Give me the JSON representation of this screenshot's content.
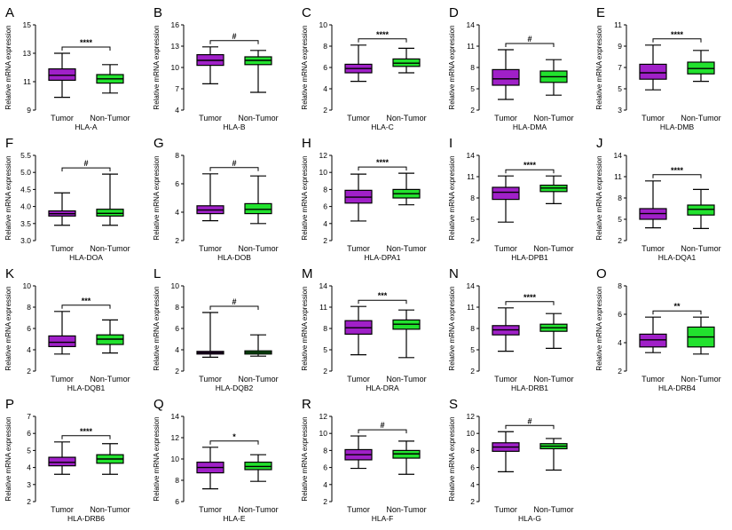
{
  "figure": {
    "ylabel": "Relative mRNA expression",
    "categories": [
      "Tumor",
      "Non-Tumor"
    ],
    "colors": {
      "tumor": "#A020C8",
      "normal": "#22E22E",
      "line": "#000000"
    }
  },
  "chart_data": [
    {
      "type": "box",
      "letter": "A",
      "gene": "HLA-A",
      "ylabel": "Relative mRNA expression",
      "categories": [
        "Tumor",
        "Non-Tumor"
      ],
      "ylim": [
        9,
        15
      ],
      "yticks": [
        "9",
        "11",
        "13",
        "15"
      ],
      "sig": "****",
      "series": [
        {
          "name": "Tumor",
          "min": 9.9,
          "q1": 11.1,
          "median": 11.45,
          "q3": 11.9,
          "max": 13.0
        },
        {
          "name": "Non-Tumor",
          "min": 10.2,
          "q1": 10.9,
          "median": 11.2,
          "q3": 11.5,
          "max": 12.2
        }
      ]
    },
    {
      "type": "box",
      "letter": "B",
      "gene": "HLA-B",
      "ylabel": "Relative mRNA expression",
      "categories": [
        "Tumor",
        "Non-Tumor"
      ],
      "ylim": [
        4,
        16
      ],
      "yticks": [
        "4",
        "7",
        "10",
        "13",
        "16"
      ],
      "sig": "#",
      "series": [
        {
          "name": "Tumor",
          "min": 7.7,
          "q1": 10.3,
          "median": 11.0,
          "q3": 11.8,
          "max": 12.9
        },
        {
          "name": "Non-Tumor",
          "min": 6.5,
          "q1": 10.4,
          "median": 11.0,
          "q3": 11.5,
          "max": 12.4
        }
      ]
    },
    {
      "type": "box",
      "letter": "C",
      "gene": "HLA-C",
      "ylabel": "Relative mRNA expression",
      "categories": [
        "Tumor",
        "Non-Tumor"
      ],
      "ylim": [
        2,
        10
      ],
      "yticks": [
        "2",
        "4",
        "6",
        "8",
        "10"
      ],
      "sig": "****",
      "series": [
        {
          "name": "Tumor",
          "min": 4.7,
          "q1": 5.5,
          "median": 5.9,
          "q3": 6.3,
          "max": 8.1
        },
        {
          "name": "Non-Tumor",
          "min": 5.5,
          "q1": 6.1,
          "median": 6.4,
          "q3": 6.8,
          "max": 7.8
        }
      ]
    },
    {
      "type": "box",
      "letter": "D",
      "gene": "HLA-DMA",
      "ylabel": "Relative mRNA expression",
      "categories": [
        "Tumor",
        "Non-Tumor"
      ],
      "ylim": [
        2,
        14
      ],
      "yticks": [
        "2",
        "5",
        "8",
        "11",
        "14"
      ],
      "sig": "#",
      "series": [
        {
          "name": "Tumor",
          "min": 3.5,
          "q1": 5.5,
          "median": 6.4,
          "q3": 7.7,
          "max": 10.5
        },
        {
          "name": "Non-Tumor",
          "min": 4.1,
          "q1": 5.9,
          "median": 6.7,
          "q3": 7.5,
          "max": 9.1
        }
      ]
    },
    {
      "type": "box",
      "letter": "E",
      "gene": "HLA-DMB",
      "ylabel": "Relative mRNA expression",
      "categories": [
        "Tumor",
        "Non-Tumor"
      ],
      "ylim": [
        3,
        11
      ],
      "yticks": [
        "3",
        "5",
        "7",
        "9",
        "11"
      ],
      "sig": "****",
      "series": [
        {
          "name": "Tumor",
          "min": 4.9,
          "q1": 5.9,
          "median": 6.5,
          "q3": 7.3,
          "max": 9.1
        },
        {
          "name": "Non-Tumor",
          "min": 5.7,
          "q1": 6.4,
          "median": 6.9,
          "q3": 7.5,
          "max": 8.6
        }
      ]
    },
    {
      "type": "box",
      "letter": "F",
      "gene": "HLA-DOA",
      "ylabel": "Relative mRNA expression",
      "categories": [
        "Tumor",
        "Non-Tumor"
      ],
      "ylim": [
        3.0,
        5.5
      ],
      "yticks": [
        "3.0",
        "3.5",
        "4.0",
        "4.5",
        "5.0",
        "5.5"
      ],
      "sig": "#",
      "series": [
        {
          "name": "Tumor",
          "min": 3.45,
          "q1": 3.72,
          "median": 3.79,
          "q3": 3.87,
          "max": 4.4
        },
        {
          "name": "Non-Tumor",
          "min": 3.45,
          "q1": 3.72,
          "median": 3.8,
          "q3": 3.92,
          "max": 4.95
        }
      ]
    },
    {
      "type": "box",
      "letter": "G",
      "gene": "HLA-DOB",
      "ylabel": "Relative mRNA expression",
      "categories": [
        "Tumor",
        "Non-Tumor"
      ],
      "ylim": [
        2,
        8
      ],
      "yticks": [
        "2",
        "4",
        "6",
        "8"
      ],
      "sig": "#",
      "series": [
        {
          "name": "Tumor",
          "min": 3.4,
          "q1": 3.9,
          "median": 4.15,
          "q3": 4.45,
          "max": 6.7
        },
        {
          "name": "Non-Tumor",
          "min": 3.2,
          "q1": 3.9,
          "median": 4.2,
          "q3": 4.6,
          "max": 6.55
        }
      ]
    },
    {
      "type": "box",
      "letter": "H",
      "gene": "HLA-DPA1",
      "ylabel": "Relative mRNA expression",
      "categories": [
        "Tumor",
        "Non-Tumor"
      ],
      "ylim": [
        2,
        12
      ],
      "yticks": [
        "2",
        "4",
        "6",
        "8",
        "10",
        "12"
      ],
      "sig": "****",
      "series": [
        {
          "name": "Tumor",
          "min": 4.3,
          "q1": 6.4,
          "median": 7.1,
          "q3": 7.9,
          "max": 9.8
        },
        {
          "name": "Non-Tumor",
          "min": 6.2,
          "q1": 7.0,
          "median": 7.5,
          "q3": 8.0,
          "max": 9.9
        }
      ]
    },
    {
      "type": "box",
      "letter": "I",
      "gene": "HLA-DPB1",
      "ylabel": "Relative mRNA expression",
      "categories": [
        "Tumor",
        "Non-Tumor"
      ],
      "ylim": [
        2,
        14
      ],
      "yticks": [
        "2",
        "5",
        "8",
        "11",
        "14"
      ],
      "sig": "****",
      "series": [
        {
          "name": "Tumor",
          "min": 4.6,
          "q1": 7.8,
          "median": 8.8,
          "q3": 9.5,
          "max": 11.1
        },
        {
          "name": "Non-Tumor",
          "min": 7.2,
          "q1": 8.9,
          "median": 9.4,
          "q3": 9.8,
          "max": 11.1
        }
      ]
    },
    {
      "type": "box",
      "letter": "J",
      "gene": "HLA-DQA1",
      "ylabel": "Relative mRNA expression",
      "categories": [
        "Tumor",
        "Non-Tumor"
      ],
      "ylim": [
        2,
        14
      ],
      "yticks": [
        "2",
        "5",
        "8",
        "11",
        "14"
      ],
      "sig": "****",
      "series": [
        {
          "name": "Tumor",
          "min": 3.8,
          "q1": 5.0,
          "median": 5.8,
          "q3": 6.5,
          "max": 10.4
        },
        {
          "name": "Non-Tumor",
          "min": 3.7,
          "q1": 5.6,
          "median": 6.4,
          "q3": 7.0,
          "max": 9.2
        }
      ]
    },
    {
      "type": "box",
      "letter": "K",
      "gene": "HLA-DQB1",
      "ylabel": "Relative mRNA expression",
      "categories": [
        "Tumor",
        "Non-Tumor"
      ],
      "ylim": [
        2,
        10
      ],
      "yticks": [
        "2",
        "4",
        "6",
        "8",
        "10"
      ],
      "sig": "***",
      "series": [
        {
          "name": "Tumor",
          "min": 3.6,
          "q1": 4.3,
          "median": 4.7,
          "q3": 5.3,
          "max": 7.6
        },
        {
          "name": "Non-Tumor",
          "min": 3.7,
          "q1": 4.5,
          "median": 5.0,
          "q3": 5.4,
          "max": 6.8
        }
      ]
    },
    {
      "type": "box",
      "letter": "L",
      "gene": "HLA-DQB2",
      "ylabel": "Relative mRNA expression",
      "categories": [
        "Tumor",
        "Non-Tumor"
      ],
      "ylim": [
        2,
        10
      ],
      "yticks": [
        "2",
        "4",
        "6",
        "8",
        "10"
      ],
      "sig": "#",
      "series": [
        {
          "name": "Tumor",
          "min": 3.3,
          "q1": 3.6,
          "median": 3.72,
          "q3": 3.85,
          "max": 7.5
        },
        {
          "name": "Non-Tumor",
          "min": 3.4,
          "q1": 3.6,
          "median": 3.75,
          "q3": 3.9,
          "max": 5.4
        }
      ]
    },
    {
      "type": "box",
      "letter": "M",
      "gene": "HLA-DRA",
      "ylabel": "Relative mRNA expression",
      "categories": [
        "Tumor",
        "Non-Tumor"
      ],
      "ylim": [
        2,
        14
      ],
      "yticks": [
        "2",
        "5",
        "8",
        "11",
        "14"
      ],
      "sig": "***",
      "series": [
        {
          "name": "Tumor",
          "min": 4.3,
          "q1": 7.2,
          "median": 8.1,
          "q3": 9.1,
          "max": 11.1
        },
        {
          "name": "Non-Tumor",
          "min": 3.9,
          "q1": 7.9,
          "median": 8.6,
          "q3": 9.2,
          "max": 10.6
        }
      ]
    },
    {
      "type": "box",
      "letter": "N",
      "gene": "HLA-DRB1",
      "ylabel": "Relative mRNA expression",
      "categories": [
        "Tumor",
        "Non-Tumor"
      ],
      "ylim": [
        2,
        14
      ],
      "yticks": [
        "2",
        "5",
        "8",
        "11",
        "14"
      ],
      "sig": "****",
      "series": [
        {
          "name": "Tumor",
          "min": 4.8,
          "q1": 7.1,
          "median": 7.8,
          "q3": 8.4,
          "max": 10.9
        },
        {
          "name": "Non-Tumor",
          "min": 5.2,
          "q1": 7.6,
          "median": 8.1,
          "q3": 8.6,
          "max": 10.1
        }
      ]
    },
    {
      "type": "box",
      "letter": "O",
      "gene": "HLA-DRB4",
      "ylabel": "Relative mRNA expression",
      "categories": [
        "Tumor",
        "Non-Tumor"
      ],
      "ylim": [
        2,
        8
      ],
      "yticks": [
        "2",
        "4",
        "6",
        "8"
      ],
      "sig": "**",
      "series": [
        {
          "name": "Tumor",
          "min": 3.3,
          "q1": 3.7,
          "median": 4.2,
          "q3": 4.6,
          "max": 5.8
        },
        {
          "name": "Non-Tumor",
          "min": 3.2,
          "q1": 3.7,
          "median": 4.4,
          "q3": 5.1,
          "max": 5.8
        }
      ]
    },
    {
      "type": "box",
      "letter": "P",
      "gene": "HLA-DRB6",
      "ylabel": "Relative mRNA expression",
      "categories": [
        "Tumor",
        "Non-Tumor"
      ],
      "ylim": [
        2,
        7
      ],
      "yticks": [
        "2",
        "3",
        "4",
        "5",
        "6",
        "7"
      ],
      "sig": "****",
      "series": [
        {
          "name": "Tumor",
          "min": 3.6,
          "q1": 4.1,
          "median": 4.3,
          "q3": 4.6,
          "max": 5.5
        },
        {
          "name": "Non-Tumor",
          "min": 3.6,
          "q1": 4.25,
          "median": 4.5,
          "q3": 4.75,
          "max": 5.4
        }
      ]
    },
    {
      "type": "box",
      "letter": "Q",
      "gene": "HLA-E",
      "ylabel": "Relative mRNA expression",
      "categories": [
        "Tumor",
        "Non-Tumor"
      ],
      "ylim": [
        6,
        14
      ],
      "yticks": [
        "6",
        "8",
        "10",
        "12",
        "14"
      ],
      "sig": "*",
      "series": [
        {
          "name": "Tumor",
          "min": 7.2,
          "q1": 8.7,
          "median": 9.2,
          "q3": 9.7,
          "max": 11.1
        },
        {
          "name": "Non-Tumor",
          "min": 7.9,
          "q1": 9.0,
          "median": 9.3,
          "q3": 9.7,
          "max": 10.4
        }
      ]
    },
    {
      "type": "box",
      "letter": "R",
      "gene": "HLA-F",
      "ylabel": "Relative mRNA expression",
      "categories": [
        "Tumor",
        "Non-Tumor"
      ],
      "ylim": [
        2,
        12
      ],
      "yticks": [
        "2",
        "4",
        "6",
        "8",
        "10",
        "12"
      ],
      "sig": "#",
      "series": [
        {
          "name": "Tumor",
          "min": 5.9,
          "q1": 6.9,
          "median": 7.5,
          "q3": 8.1,
          "max": 9.7
        },
        {
          "name": "Non-Tumor",
          "min": 5.2,
          "q1": 7.1,
          "median": 7.6,
          "q3": 8.0,
          "max": 9.1
        }
      ]
    },
    {
      "type": "box",
      "letter": "S",
      "gene": "HLA-G",
      "ylabel": "Relative mRNA expression",
      "categories": [
        "Tumor",
        "Non-Tumor"
      ],
      "ylim": [
        2,
        12
      ],
      "yticks": [
        "2",
        "4",
        "6",
        "8",
        "10",
        "12"
      ],
      "sig": "#",
      "series": [
        {
          "name": "Tumor",
          "min": 5.5,
          "q1": 7.9,
          "median": 8.4,
          "q3": 8.9,
          "max": 10.2
        },
        {
          "name": "Non-Tumor",
          "min": 5.7,
          "q1": 8.2,
          "median": 8.5,
          "q3": 8.8,
          "max": 9.4
        }
      ]
    }
  ]
}
